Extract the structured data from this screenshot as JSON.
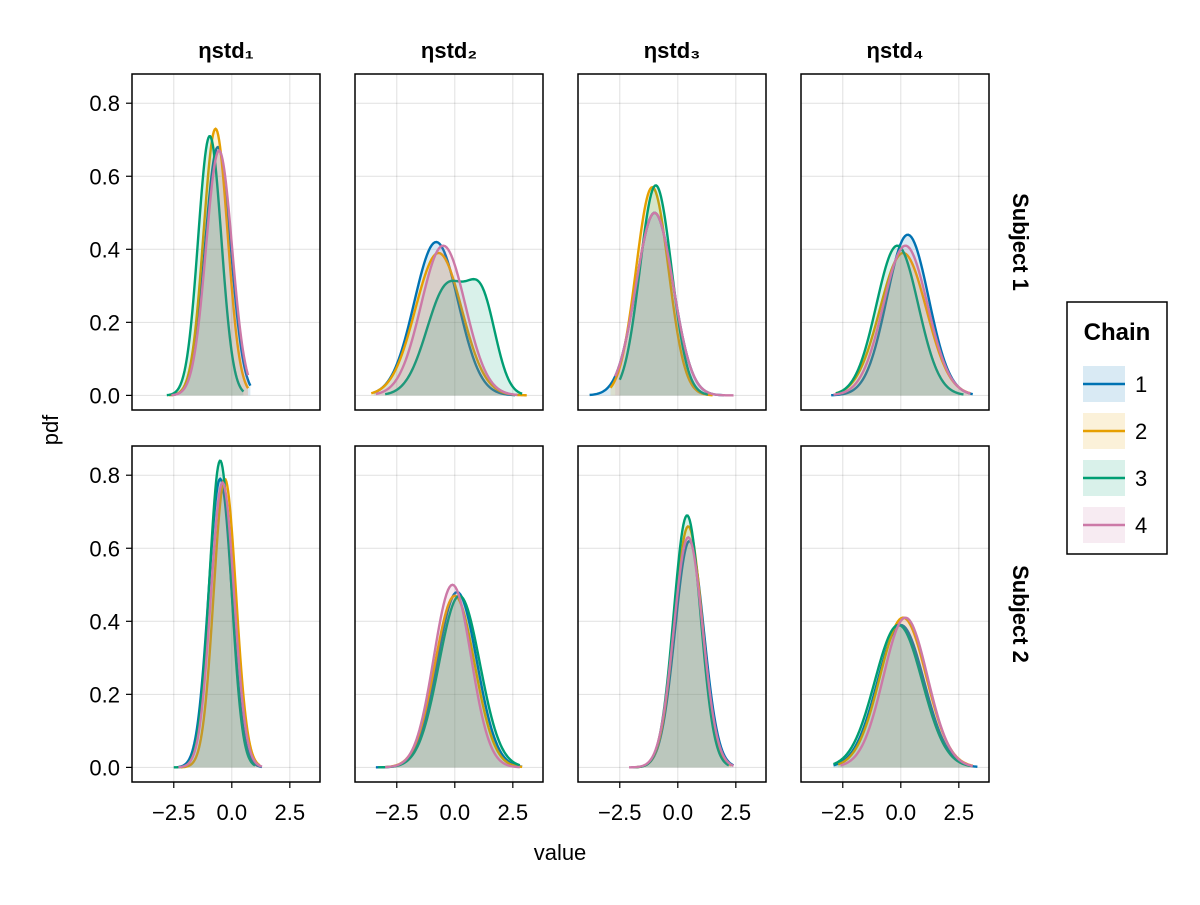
{
  "figure": {
    "xlabel": "value",
    "ylabel": "pdf",
    "col_titles": [
      "ηstd₁",
      "ηstd₂",
      "ηstd₃",
      "ηstd₄"
    ],
    "row_titles": [
      "Subject 1",
      "Subject 2"
    ]
  },
  "legend": {
    "title": "Chain",
    "entries": [
      {
        "label": "1",
        "color": "#0072B2"
      },
      {
        "label": "2",
        "color": "#E69F00"
      },
      {
        "label": "3",
        "color": "#009E73"
      },
      {
        "label": "4",
        "color": "#CC79A7"
      }
    ]
  },
  "chart_data": {
    "type": "area",
    "description_units": "x in parameter value, y in density",
    "xlim": [
      -4.3,
      3.8
    ],
    "ylim": [
      -0.04,
      0.88
    ],
    "xticks": [
      -2.5,
      0.0,
      2.5
    ],
    "xtick_labels": [
      "−2.5",
      "0.0",
      "2.5"
    ],
    "yticks": [
      0.0,
      0.2,
      0.4,
      0.6,
      0.8
    ],
    "ytick_labels": [
      "0.0",
      "0.2",
      "0.4",
      "0.6",
      "0.8"
    ],
    "grid": true,
    "legend_position": "right",
    "panels": [
      {
        "row": 0,
        "col": 0,
        "series": [
          {
            "name": "1",
            "xmin": -2.6,
            "xmax": 0.8,
            "peaks": [
              [
                -0.6,
                0.68,
                0.55
              ]
            ]
          },
          {
            "name": "2",
            "xmin": -2.7,
            "xmax": 0.7,
            "peaks": [
              [
                -0.7,
                0.73,
                0.52
              ]
            ]
          },
          {
            "name": "3",
            "xmin": -2.8,
            "xmax": 0.5,
            "peaks": [
              [
                -0.95,
                0.71,
                0.5
              ]
            ]
          },
          {
            "name": "4",
            "xmin": -2.6,
            "xmax": 0.7,
            "peaks": [
              [
                -0.55,
                0.67,
                0.56
              ]
            ]
          }
        ]
      },
      {
        "row": 0,
        "col": 1,
        "series": [
          {
            "name": "1",
            "xmin": -3.5,
            "xmax": 2.6,
            "peaks": [
              [
                -0.8,
                0.42,
                0.95
              ]
            ]
          },
          {
            "name": "2",
            "xmin": -3.6,
            "xmax": 3.1,
            "peaks": [
              [
                -0.7,
                0.39,
                1.0
              ]
            ]
          },
          {
            "name": "3",
            "xmin": -3.0,
            "xmax": 2.9,
            "peaks": [
              [
                -0.3,
                0.3,
                0.9
              ],
              [
                1.2,
                0.22,
                0.6
              ]
            ]
          },
          {
            "name": "4",
            "xmin": -3.4,
            "xmax": 2.7,
            "peaks": [
              [
                -0.5,
                0.41,
                0.95
              ]
            ]
          }
        ]
      },
      {
        "row": 0,
        "col": 2,
        "series": [
          {
            "name": "1",
            "xmin": -3.8,
            "xmax": 2.0,
            "peaks": [
              [
                -1.0,
                0.5,
                0.8
              ]
            ]
          },
          {
            "name": "2",
            "xmin": -2.9,
            "xmax": 1.5,
            "peaks": [
              [
                -1.1,
                0.57,
                0.7
              ]
            ]
          },
          {
            "name": "3",
            "xmin": -2.5,
            "xmax": 1.3,
            "peaks": [
              [
                -0.95,
                0.575,
                0.68
              ]
            ]
          },
          {
            "name": "4",
            "xmin": -2.7,
            "xmax": 2.4,
            "peaks": [
              [
                -1.0,
                0.5,
                0.8
              ]
            ]
          }
        ]
      },
      {
        "row": 0,
        "col": 3,
        "series": [
          {
            "name": "1",
            "xmin": -3.0,
            "xmax": 3.1,
            "peaks": [
              [
                0.3,
                0.44,
                0.9
              ]
            ]
          },
          {
            "name": "2",
            "xmin": -2.8,
            "xmax": 3.0,
            "peaks": [
              [
                0.1,
                0.39,
                1.0
              ]
            ]
          },
          {
            "name": "3",
            "xmin": -2.8,
            "xmax": 2.7,
            "peaks": [
              [
                -0.15,
                0.41,
                0.9
              ]
            ]
          },
          {
            "name": "4",
            "xmin": -2.9,
            "xmax": 3.0,
            "peaks": [
              [
                0.2,
                0.41,
                0.95
              ]
            ]
          }
        ]
      },
      {
        "row": 1,
        "col": 0,
        "series": [
          {
            "name": "1",
            "xmin": -2.3,
            "xmax": 1.3,
            "peaks": [
              [
                -0.5,
                0.79,
                0.5
              ]
            ]
          },
          {
            "name": "2",
            "xmin": -2.2,
            "xmax": 1.2,
            "peaks": [
              [
                -0.3,
                0.79,
                0.48
              ]
            ]
          },
          {
            "name": "3",
            "xmin": -2.5,
            "xmax": 1.0,
            "peaks": [
              [
                -0.5,
                0.84,
                0.47
              ]
            ]
          },
          {
            "name": "4",
            "xmin": -2.3,
            "xmax": 1.3,
            "peaks": [
              [
                -0.4,
                0.78,
                0.5
              ]
            ]
          }
        ]
      },
      {
        "row": 1,
        "col": 1,
        "series": [
          {
            "name": "1",
            "xmin": -3.4,
            "xmax": 2.9,
            "peaks": [
              [
                0.1,
                0.48,
                0.85
              ]
            ]
          },
          {
            "name": "2",
            "xmin": -3.0,
            "xmax": 2.9,
            "peaks": [
              [
                0.0,
                0.47,
                0.85
              ]
            ]
          },
          {
            "name": "3",
            "xmin": -3.3,
            "xmax": 2.8,
            "peaks": [
              [
                0.2,
                0.47,
                0.88
              ]
            ]
          },
          {
            "name": "4",
            "xmin": -3.0,
            "xmax": 2.8,
            "peaks": [
              [
                -0.1,
                0.5,
                0.8
              ]
            ]
          }
        ]
      },
      {
        "row": 1,
        "col": 2,
        "series": [
          {
            "name": "1",
            "xmin": -2.0,
            "xmax": 2.4,
            "peaks": [
              [
                0.5,
                0.62,
                0.62
              ]
            ]
          },
          {
            "name": "2",
            "xmin": -1.9,
            "xmax": 2.3,
            "peaks": [
              [
                0.45,
                0.66,
                0.6
              ]
            ]
          },
          {
            "name": "3",
            "xmin": -1.9,
            "xmax": 2.2,
            "peaks": [
              [
                0.4,
                0.69,
                0.58
              ]
            ]
          },
          {
            "name": "4",
            "xmin": -2.1,
            "xmax": 2.4,
            "peaks": [
              [
                0.45,
                0.63,
                0.62
              ]
            ]
          }
        ]
      },
      {
        "row": 1,
        "col": 3,
        "series": [
          {
            "name": "1",
            "xmin": -2.9,
            "xmax": 3.3,
            "peaks": [
              [
                0.0,
                0.39,
                1.0
              ]
            ]
          },
          {
            "name": "2",
            "xmin": -2.7,
            "xmax": 3.1,
            "peaks": [
              [
                0.1,
                0.41,
                1.0
              ]
            ]
          },
          {
            "name": "3",
            "xmin": -2.9,
            "xmax": 3.0,
            "peaks": [
              [
                -0.1,
                0.39,
                1.02
              ]
            ]
          },
          {
            "name": "4",
            "xmin": -2.6,
            "xmax": 3.1,
            "peaks": [
              [
                0.2,
                0.41,
                0.95
              ]
            ]
          }
        ]
      }
    ]
  }
}
